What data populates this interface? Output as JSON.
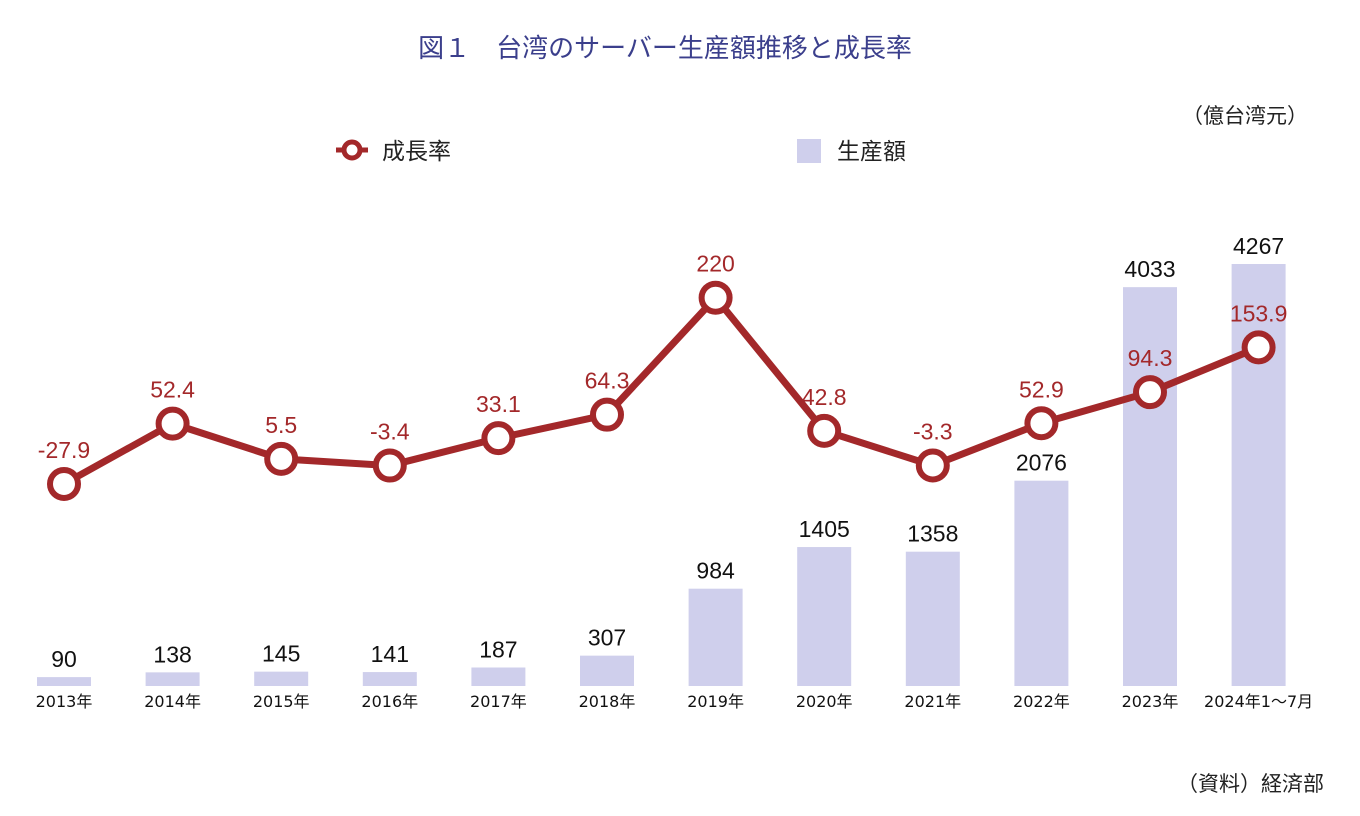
{
  "title": "図１　台湾のサーバー生産額推移と成長率",
  "unit": "（億台湾元）",
  "source": "（資料）経済部",
  "colors": {
    "bar": "#cfcfec",
    "line": "#a3282a",
    "title": "#3b3f8c"
  },
  "chart_data": {
    "type": "bar+line",
    "categories": [
      "2013年",
      "2014年",
      "2015年",
      "2016年",
      "2017年",
      "2018年",
      "2019年",
      "2020年",
      "2021年",
      "2022年",
      "2023年",
      "2024年1～7月"
    ],
    "series": [
      {
        "name": "生産額",
        "type": "bar",
        "values": [
          90,
          138,
          145,
          141,
          187,
          307,
          984,
          1405,
          1358,
          2076,
          4033,
          4267
        ]
      },
      {
        "name": "成長率",
        "type": "line",
        "values": [
          -27.9,
          52.4,
          5.5,
          -3.4,
          33.1,
          64.3,
          220,
          42.8,
          -3.3,
          52.9,
          94.3,
          153.9
        ]
      }
    ],
    "legend": {
      "position": "top",
      "items": [
        "成長率",
        "生産額"
      ]
    }
  }
}
